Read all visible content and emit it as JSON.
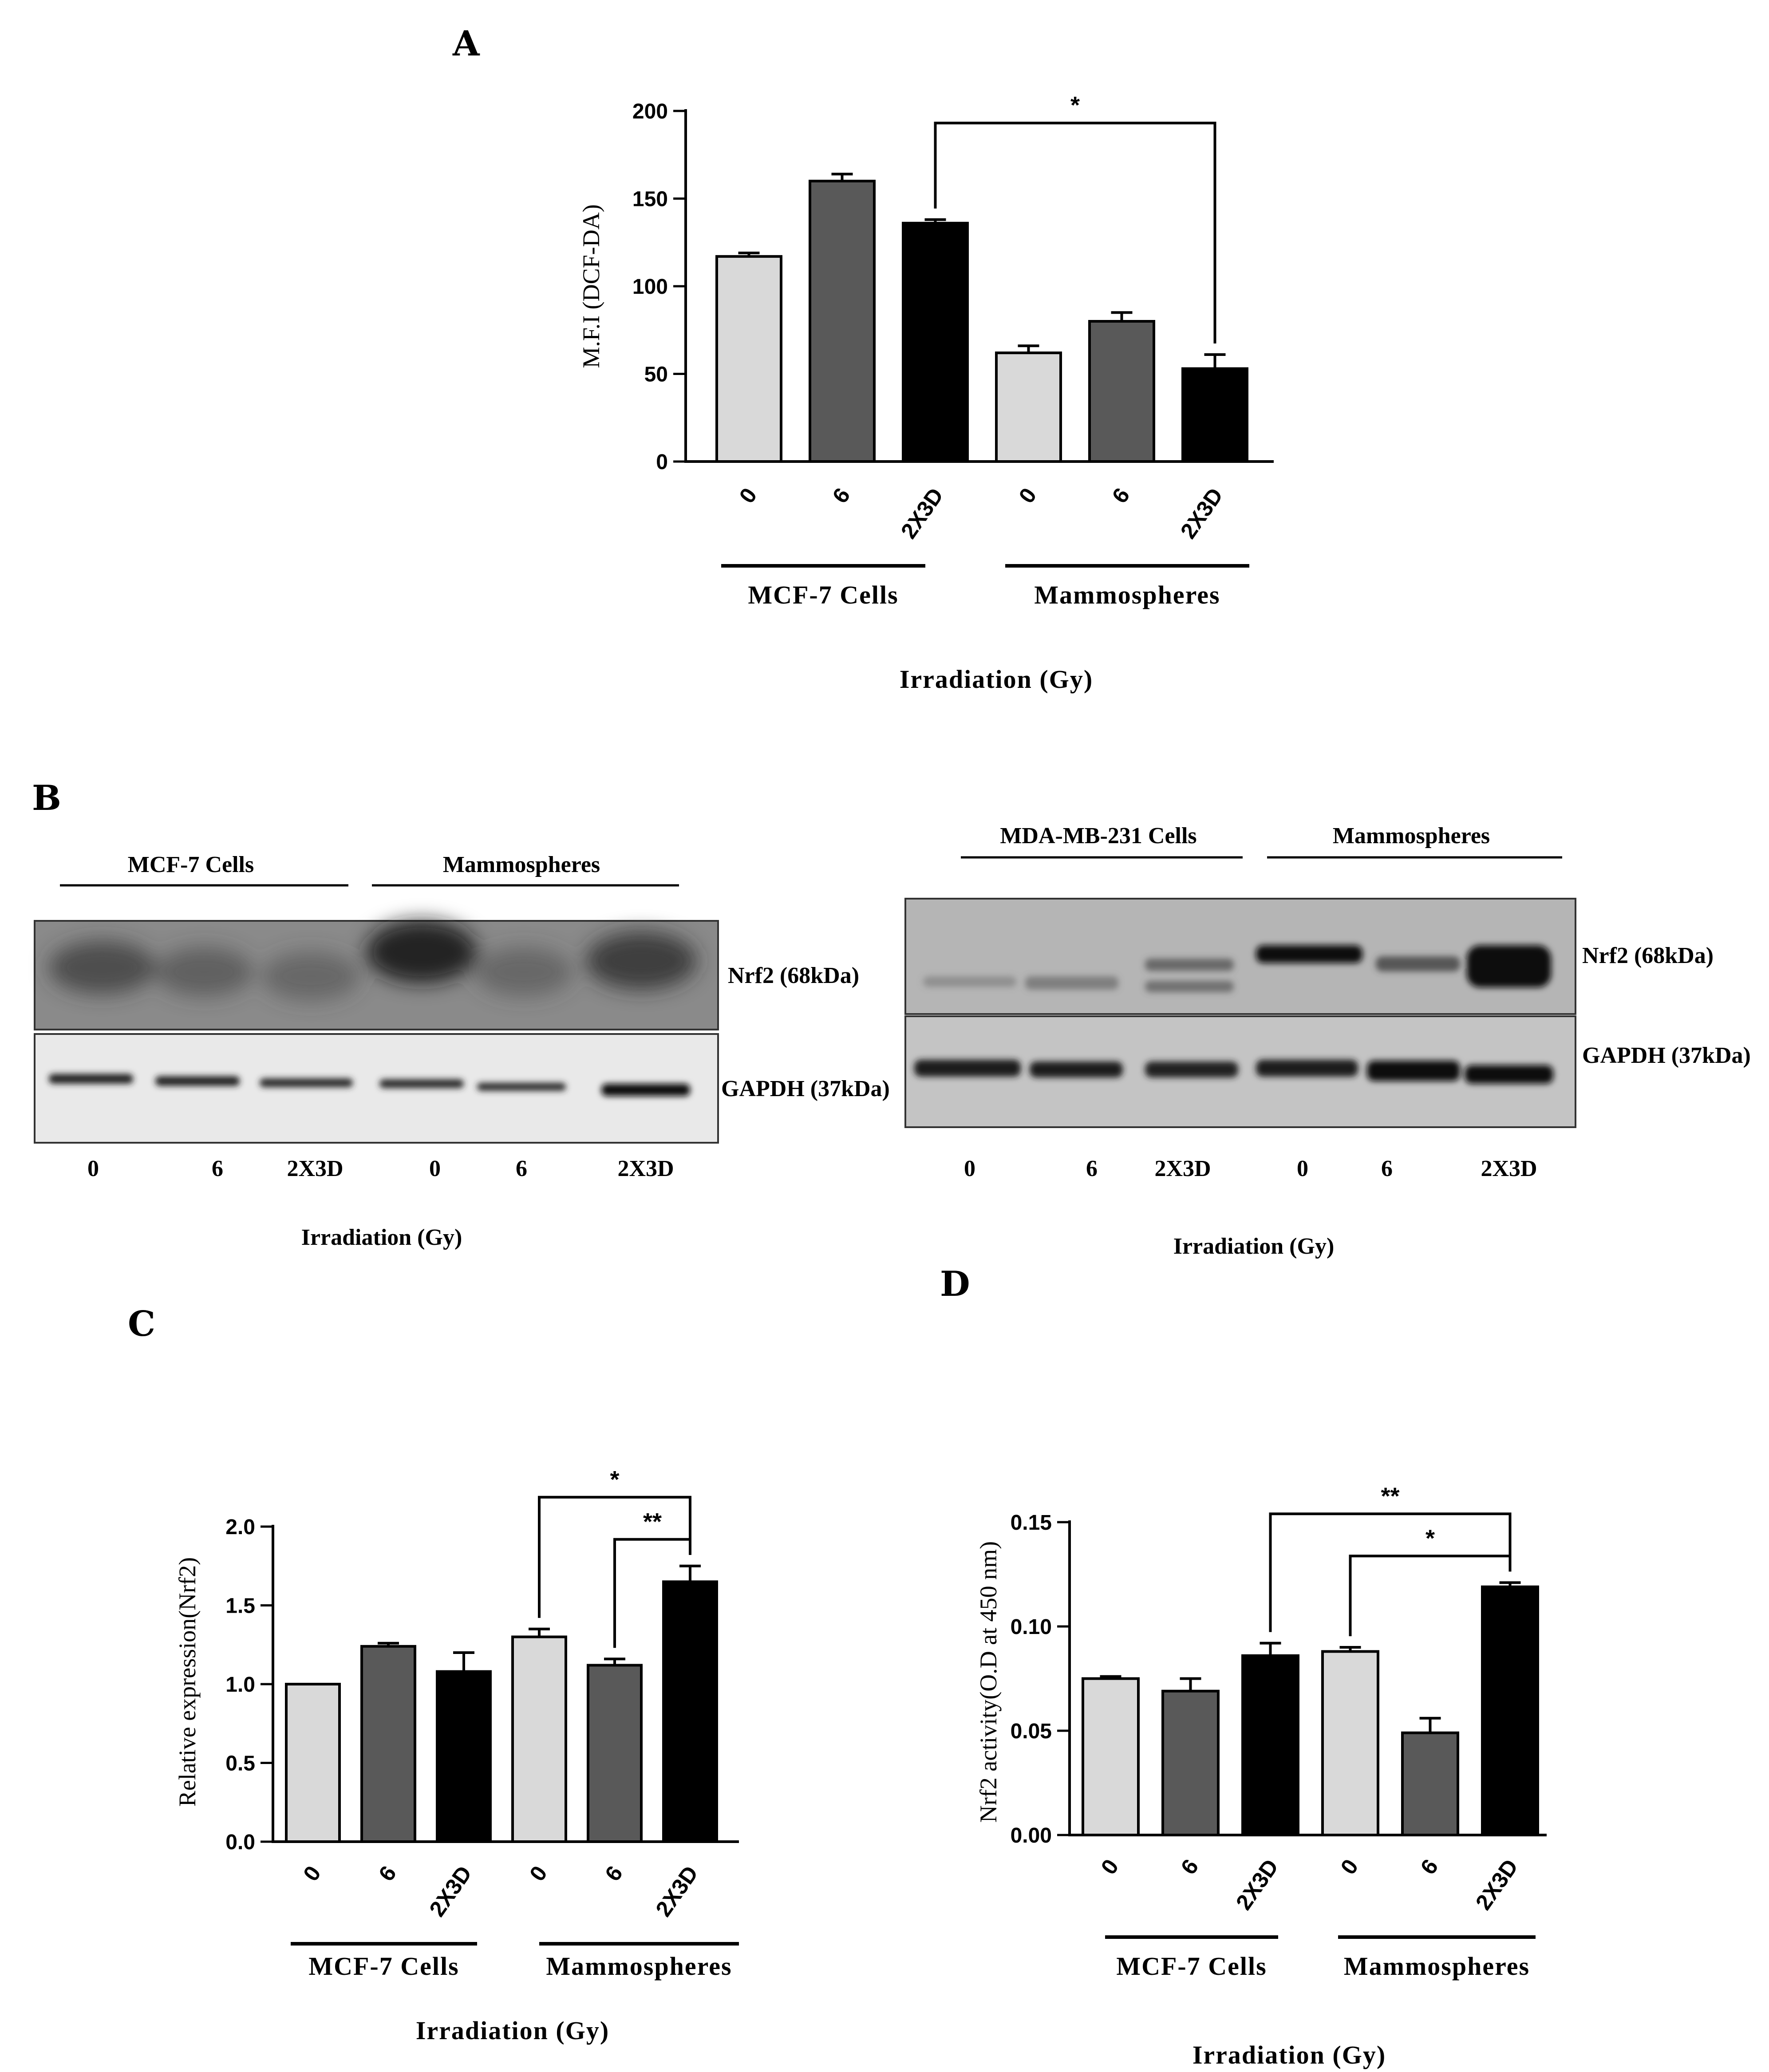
{
  "chart_data": [
    {
      "panel": "A",
      "type": "bar",
      "categories": [
        "0",
        "6",
        "2X3D",
        "0",
        "6",
        "2X3D"
      ],
      "values": [
        117,
        160,
        136,
        62,
        80,
        53
      ],
      "errors": [
        2,
        4,
        2,
        4,
        5,
        8
      ],
      "colors": [
        "#d9d9d9",
        "#595959",
        "#000000",
        "#d9d9d9",
        "#595959",
        "#000000"
      ],
      "groups": [
        "MCF-7 Cells",
        "Mammospheres"
      ],
      "ylabel": "M.F.I (DCF-DA)",
      "xlabel": "Irradiation (Gy)",
      "ylim": [
        0,
        200
      ],
      "yticks": [
        "0",
        "50",
        "100",
        "150",
        "200"
      ],
      "significance": [
        {
          "from": 2,
          "to": 5,
          "label": "*"
        }
      ]
    },
    {
      "panel": "C",
      "type": "bar",
      "categories": [
        "0",
        "6",
        "2X3D",
        "0",
        "6",
        "2X3D"
      ],
      "values": [
        1.0,
        1.24,
        1.08,
        1.3,
        1.12,
        1.65
      ],
      "errors": [
        0.0,
        0.02,
        0.12,
        0.05,
        0.04,
        0.1
      ],
      "colors": [
        "#d9d9d9",
        "#595959",
        "#000000",
        "#d9d9d9",
        "#595959",
        "#000000"
      ],
      "groups": [
        "MCF-7 Cells",
        "Mammospheres"
      ],
      "ylabel": "Relative expression(Nrf2)",
      "xlabel": "Irradiation (Gy)",
      "ylim": [
        0,
        2.0
      ],
      "yticks": [
        "0.0",
        "0.5",
        "1.0",
        "1.5",
        "2.0"
      ],
      "significance": [
        {
          "from": 3,
          "to": 5,
          "label": "*"
        },
        {
          "from": 4,
          "to": 5,
          "label": "**"
        }
      ]
    },
    {
      "panel": "D",
      "type": "bar",
      "categories": [
        "0",
        "6",
        "2X3D",
        "0",
        "6",
        "2X3D"
      ],
      "values": [
        0.075,
        0.069,
        0.086,
        0.088,
        0.049,
        0.119
      ],
      "errors": [
        0.001,
        0.006,
        0.006,
        0.002,
        0.007,
        0.002
      ],
      "colors": [
        "#d9d9d9",
        "#595959",
        "#000000",
        "#d9d9d9",
        "#595959",
        "#000000"
      ],
      "groups": [
        "MCF-7 Cells",
        "Mammospheres"
      ],
      "ylabel": "Nrf2 activity(O.D at 450 nm)",
      "xlabel": "Irradiation (Gy)",
      "ylim": [
        0,
        0.15
      ],
      "yticks": [
        "0.00",
        "0.05",
        "0.10",
        "0.15"
      ],
      "significance": [
        {
          "from": 2,
          "to": 5,
          "label": "**"
        },
        {
          "from": 3,
          "to": 5,
          "label": "*"
        }
      ]
    }
  ],
  "panel_b": {
    "letter": "B",
    "blots": [
      {
        "groups": [
          "MCF-7 Cells",
          "Mammospheres"
        ],
        "lanes": [
          "0",
          "6",
          "2X3D",
          "0",
          "6",
          "2X3D"
        ],
        "bands": [
          "Nrf2 (68kDa)",
          "GAPDH (37kDa)"
        ],
        "xlabel": "Irradiation (Gy)"
      },
      {
        "groups": [
          "MDA-MB-231 Cells",
          "Mammospheres"
        ],
        "lanes": [
          "0",
          "6",
          "2X3D",
          "0",
          "6",
          "2X3D"
        ],
        "bands": [
          "Nrf2 (68kDa)",
          "GAPDH (37kDa)"
        ],
        "xlabel": "Irradiation (Gy)"
      }
    ]
  }
}
